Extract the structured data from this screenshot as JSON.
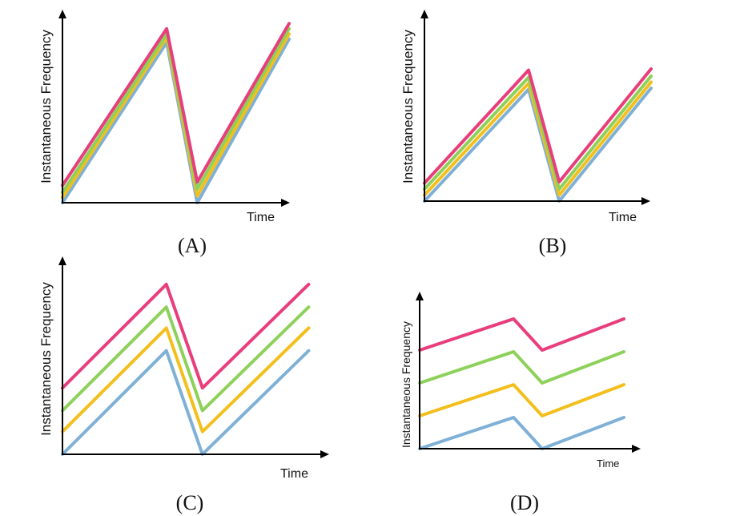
{
  "chart_data": [
    {
      "type": "line",
      "label": "(A)",
      "xlabel": "Time",
      "ylabel": "Instantaneous Frequency",
      "xlim": [
        0,
        10
      ],
      "ylim": [
        0,
        10
      ],
      "grid": false,
      "series": [
        {
          "color": "#7fb0d6",
          "x": [
            0,
            5.1,
            6.6,
            11.1
          ],
          "y": [
            0,
            9.3,
            0,
            9.5
          ]
        },
        {
          "color": "#f2bf1d",
          "x": [
            0,
            5.1,
            6.6,
            11.1
          ],
          "y": [
            0.3,
            9.6,
            0.4,
            9.8
          ]
        },
        {
          "color": "#8ed15a",
          "x": [
            0,
            5.1,
            6.6,
            11.1
          ],
          "y": [
            0.6,
            9.8,
            0.8,
            10.1
          ]
        },
        {
          "color": "#e83e7c",
          "x": [
            0,
            5.1,
            6.6,
            11.1
          ],
          "y": [
            1.0,
            10.1,
            1.2,
            10.4
          ]
        }
      ]
    },
    {
      "type": "line",
      "label": "(B)",
      "xlabel": "Time",
      "ylabel": "Instantaneous Frequency",
      "xlim": [
        0,
        10
      ],
      "ylim": [
        0,
        10
      ],
      "grid": false,
      "series": [
        {
          "color": "#7fb0d6",
          "x": [
            0,
            5.1,
            6.6,
            11.1
          ],
          "y": [
            0,
            9.3,
            0,
            9.4
          ]
        },
        {
          "color": "#f2bf1d",
          "x": [
            0,
            5.1,
            6.6,
            11.1
          ],
          "y": [
            0.5,
            9.8,
            0.5,
            9.9
          ]
        },
        {
          "color": "#8ed15a",
          "x": [
            0,
            5.1,
            6.6,
            11.1
          ],
          "y": [
            1.0,
            10.3,
            1.0,
            10.4
          ]
        },
        {
          "color": "#e83e7c",
          "x": [
            0,
            5.1,
            6.6,
            11.1
          ],
          "y": [
            1.5,
            10.9,
            1.6,
            11.0
          ]
        }
      ]
    },
    {
      "type": "line",
      "label": "(C)",
      "xlabel": "Time",
      "ylabel": "Instantaneous Frequency",
      "xlim": [
        0,
        10
      ],
      "ylim": [
        0,
        10
      ],
      "grid": false,
      "series": [
        {
          "color": "#7fb0d6",
          "x": [
            0,
            4.6,
            6.2,
            10.9
          ],
          "y": [
            0,
            6.4,
            0,
            6.4
          ]
        },
        {
          "color": "#f2bf1d",
          "x": [
            0,
            4.6,
            6.2,
            10.9
          ],
          "y": [
            1.4,
            7.8,
            1.4,
            7.8
          ]
        },
        {
          "color": "#8ed15a",
          "x": [
            0,
            4.6,
            6.2,
            10.9
          ],
          "y": [
            2.7,
            9.1,
            2.7,
            9.1
          ]
        },
        {
          "color": "#e83e7c",
          "x": [
            0,
            4.6,
            6.2,
            10.9
          ],
          "y": [
            4.1,
            10.5,
            4.1,
            10.5
          ]
        }
      ]
    },
    {
      "type": "line",
      "label": "(D)",
      "xlabel": "Time",
      "ylabel": "Instantaneous Frequency",
      "xlim": [
        0,
        10
      ],
      "ylim": [
        0,
        10
      ],
      "grid": false,
      "series": [
        {
          "color": "#7fb0d6",
          "x": [
            0,
            4.6,
            6.0,
            10.0
          ],
          "y": [
            0,
            1.9,
            0,
            1.9
          ]
        },
        {
          "color": "#f2bf1d",
          "x": [
            0,
            4.6,
            6.0,
            10.0
          ],
          "y": [
            2.0,
            3.9,
            2.0,
            3.9
          ]
        },
        {
          "color": "#8ed15a",
          "x": [
            0,
            4.6,
            6.0,
            10.0
          ],
          "y": [
            4.0,
            5.9,
            4.0,
            5.9
          ]
        },
        {
          "color": "#e83e7c",
          "x": [
            0,
            4.6,
            6.0,
            10.0
          ],
          "y": [
            6.0,
            7.9,
            6.0,
            7.9
          ]
        }
      ]
    }
  ]
}
